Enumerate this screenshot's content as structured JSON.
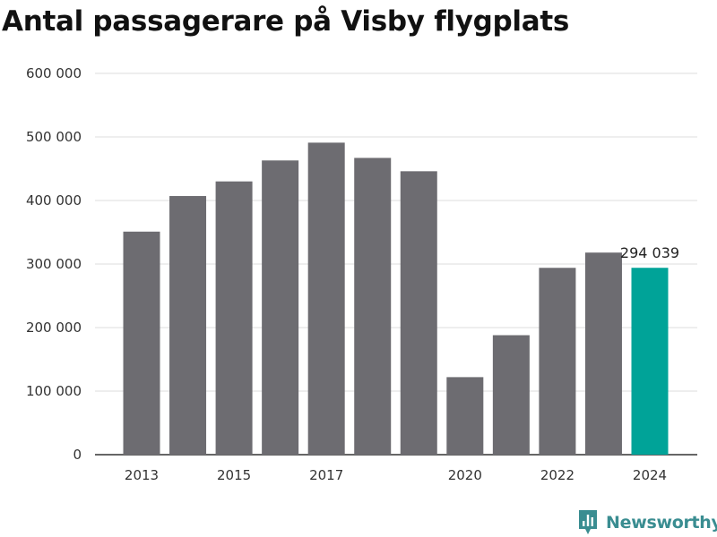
{
  "chart_data": {
    "type": "bar",
    "title": "Antal passagerare på Visby flygplats",
    "categories": [
      "2013",
      "2014",
      "2015",
      "2016",
      "2017",
      "2018",
      "2019",
      "2020",
      "2021",
      "2022",
      "2023",
      "2024"
    ],
    "x_tick_labels": [
      "2013",
      "",
      "2015",
      "",
      "2017",
      "",
      "",
      "2020",
      "",
      "2022",
      "",
      "2024"
    ],
    "values": [
      351000,
      407000,
      430000,
      463000,
      491000,
      467000,
      446000,
      122000,
      188000,
      294000,
      318000,
      294039
    ],
    "ylim": [
      0,
      600000
    ],
    "y_ticks": [
      0,
      100000,
      200000,
      300000,
      400000,
      500000,
      600000
    ],
    "y_tick_labels": [
      "0",
      "100 000",
      "200 000",
      "300 000",
      "400 000",
      "500 000",
      "600 000"
    ],
    "xlabel": "",
    "ylabel": "",
    "grid": true,
    "bar_color": "#6d6c71",
    "highlight_color": "#00a398",
    "highlight_index": 11,
    "data_label": "294 039"
  },
  "brand": {
    "name": "Newsworthy",
    "color": "#3a8d91",
    "icon": "newsworthy-logo-icon"
  }
}
